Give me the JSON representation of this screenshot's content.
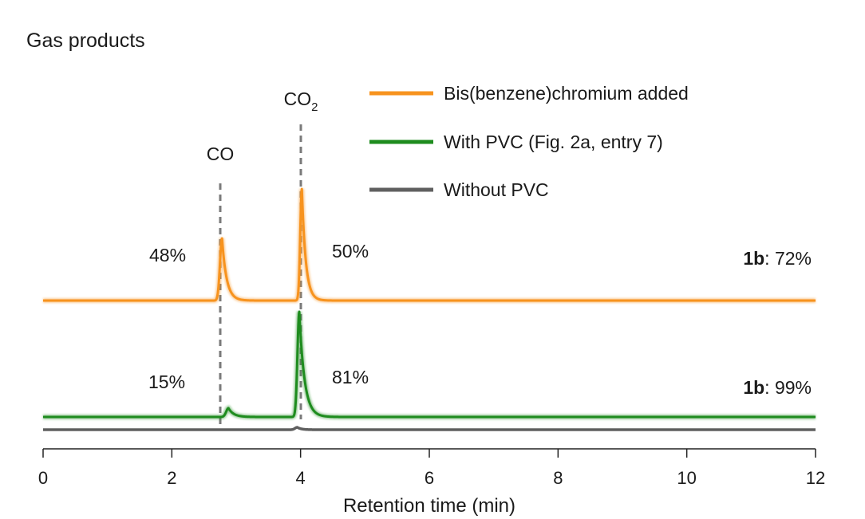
{
  "chart_data": {
    "type": "line",
    "title": "Gas products",
    "xlabel": "Retention time (min)",
    "ylabel": "",
    "xlim": [
      0,
      12
    ],
    "x_ticks": [
      0,
      2,
      4,
      6,
      8,
      10,
      12
    ],
    "x_tick_labels": [
      "0",
      "2",
      "4",
      "6",
      "8",
      "10",
      "12"
    ],
    "grid": false,
    "legend_position": "top-right",
    "peak_markers": [
      {
        "label": "CO",
        "x": 2.78
      },
      {
        "label": "CO",
        "subscript": "2",
        "x": 4.0
      }
    ],
    "series": [
      {
        "name": "Bis(benzene)chromium added",
        "color": "#f7931e",
        "peaks": [
          {
            "x": 2.78,
            "label": "48%"
          },
          {
            "x": 4.02,
            "label": "50%"
          }
        ],
        "yield_label": {
          "compound": "1b",
          "value": ": 72%"
        }
      },
      {
        "name": "With PVC (Fig. 2a, entry 7)",
        "color": "#1e8c1e",
        "peaks": [
          {
            "x": 2.85,
            "label": "15%"
          },
          {
            "x": 3.98,
            "label": "81%"
          }
        ],
        "yield_label": {
          "compound": "1b",
          "value": ": 99%"
        }
      },
      {
        "name": "Without PVC",
        "color": "#5f5f5f",
        "peaks": [],
        "yield_label": null
      }
    ]
  }
}
